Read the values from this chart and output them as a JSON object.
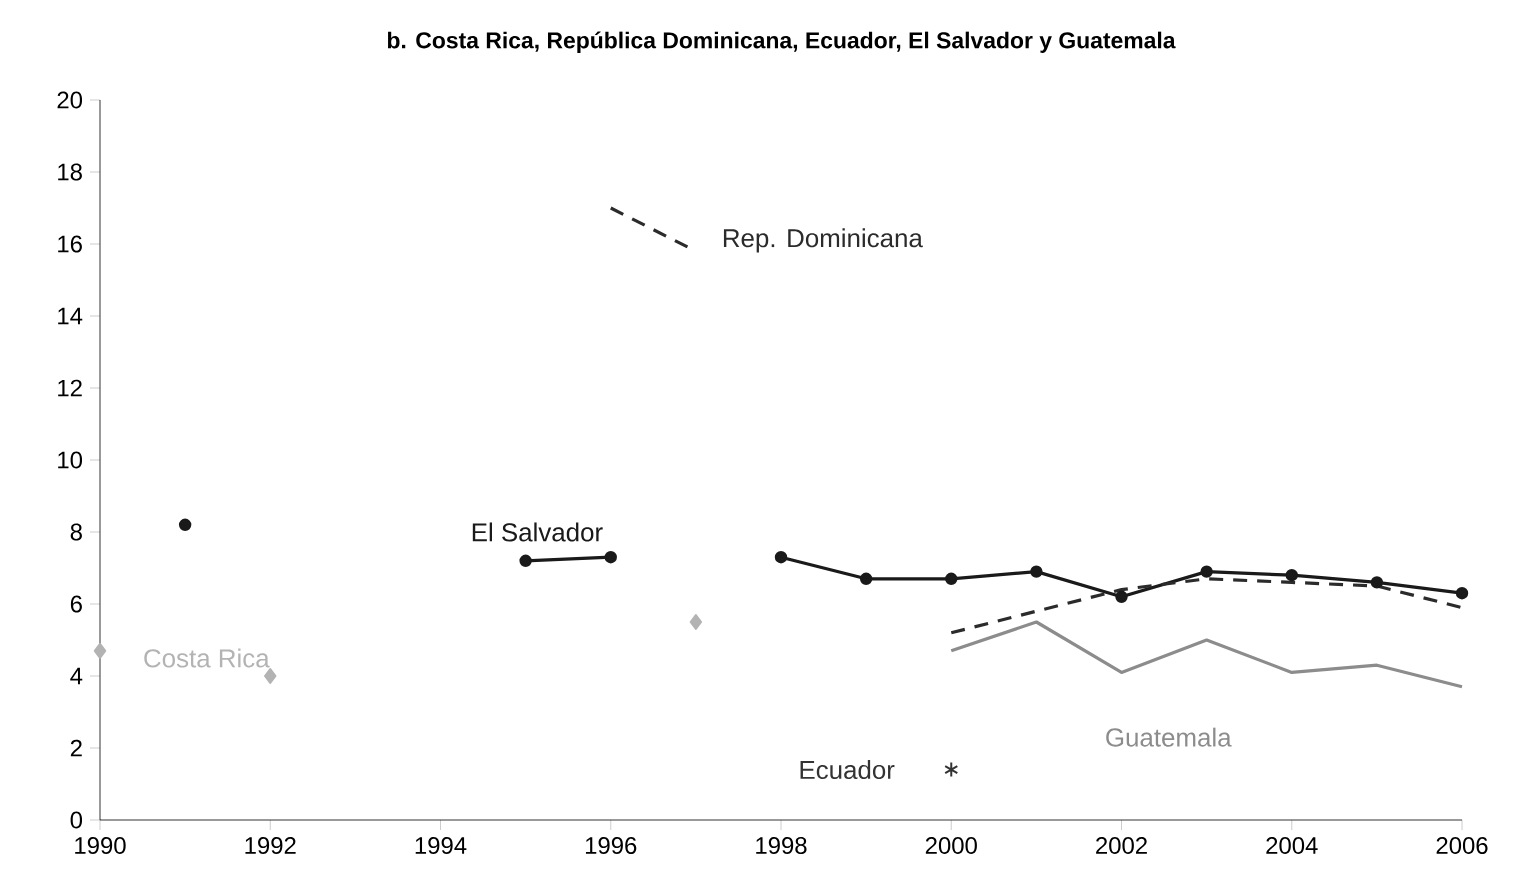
{
  "chart_data": {
    "type": "line",
    "title": "b. Costa Rica, República Dominicana, Ecuador, El Salvador y Guatemala",
    "xlim": [
      1990,
      2006
    ],
    "xticks": [
      1990,
      1992,
      1994,
      1996,
      1998,
      2000,
      2002,
      2004,
      2006
    ],
    "ylim": [
      0,
      20
    ],
    "yticks": [
      0,
      2,
      4,
      6,
      8,
      10,
      12,
      14,
      16,
      18,
      20
    ],
    "grid": false,
    "series": [
      {
        "name": "Costa Rica",
        "type": "scatter",
        "marker": "diamond",
        "color": "#b3b3b3",
        "x": [
          1990,
          1992,
          1997
        ],
        "values": [
          4.7,
          4.0,
          5.5
        ]
      },
      {
        "name": "El Salvador",
        "marker": "circle",
        "line_style": "solid",
        "color": "#1a1a1a",
        "x": [
          1991,
          1993,
          1995,
          1996,
          1997,
          1998,
          1999,
          2000,
          2001,
          2002,
          2003,
          2004,
          2005,
          2006
        ],
        "values": [
          8.2,
          null,
          7.2,
          7.3,
          null,
          7.3,
          6.7,
          6.7,
          6.9,
          6.2,
          6.9,
          6.8,
          6.6,
          6.3
        ]
      },
      {
        "name": "Rep. Dominicana",
        "marker": "none",
        "line_style": "dashed",
        "color": "#2b2b2b",
        "x": [
          2000,
          2001,
          2002,
          2003,
          2004,
          2005,
          2006
        ],
        "values": [
          5.2,
          5.8,
          6.4,
          6.7,
          6.6,
          6.5,
          5.9
        ]
      },
      {
        "name": "Ecuador",
        "type": "scatter",
        "marker": "cross",
        "color": "#333333",
        "x": [
          2000
        ],
        "values": [
          1.4
        ]
      },
      {
        "name": "Guatemala",
        "marker": "none",
        "line_style": "solid",
        "color": "#8c8c8c",
        "x": [
          2000,
          2001,
          2002,
          2003,
          2004,
          2005,
          2006
        ],
        "values": [
          4.7,
          5.5,
          4.1,
          5.0,
          4.1,
          4.3,
          3.7
        ]
      }
    ]
  }
}
